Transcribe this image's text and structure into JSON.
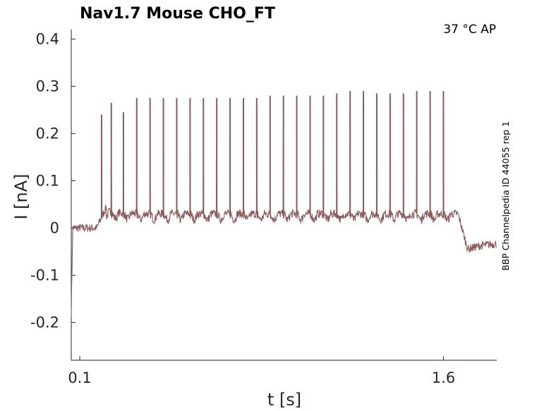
{
  "chart_data": {
    "type": "line",
    "title": "Nav1.7  Mouse  CHO_FT",
    "condition": "37 °C  AP",
    "side_label": "BBP Channelpedia ID 44055 rep 1",
    "xlabel": "t [s]",
    "ylabel": "I [nA]",
    "xlim": [
      0.065,
      1.82
    ],
    "ylim": [
      -0.28,
      0.42
    ],
    "x_ticks": [
      0.1,
      1.6
    ],
    "x_tick_labels": [
      "0.1",
      "1.6"
    ],
    "y_ticks": [
      0.4,
      0.3,
      0.2,
      0.1,
      0,
      -0.1,
      -0.2
    ],
    "y_tick_labels": [
      "0.4",
      "0.3",
      "0.2",
      "0.1",
      "0",
      "-0.1",
      "-0.2"
    ],
    "series": [
      {
        "color": "#8b5a5a",
        "stim_start": 0.17,
        "stim_end": 1.66,
        "baseline": 0.0,
        "stim_level": 0.03,
        "post_level": -0.03,
        "spike_times": [
          0.19,
          0.23,
          0.28,
          0.335,
          0.39,
          0.445,
          0.5,
          0.555,
          0.61,
          0.665,
          0.72,
          0.775,
          0.83,
          0.885,
          0.94,
          0.995,
          1.05,
          1.105,
          1.16,
          1.215,
          1.27,
          1.325,
          1.38,
          1.435,
          1.49,
          1.545,
          1.6
        ],
        "spike_peaks": [
          0.24,
          0.265,
          0.245,
          0.275,
          0.275,
          0.275,
          0.275,
          0.275,
          0.275,
          0.275,
          0.275,
          0.275,
          0.275,
          0.28,
          0.28,
          0.28,
          0.28,
          0.28,
          0.285,
          0.29,
          0.29,
          0.285,
          0.285,
          0.285,
          0.29,
          0.29,
          0.29
        ]
      }
    ]
  }
}
